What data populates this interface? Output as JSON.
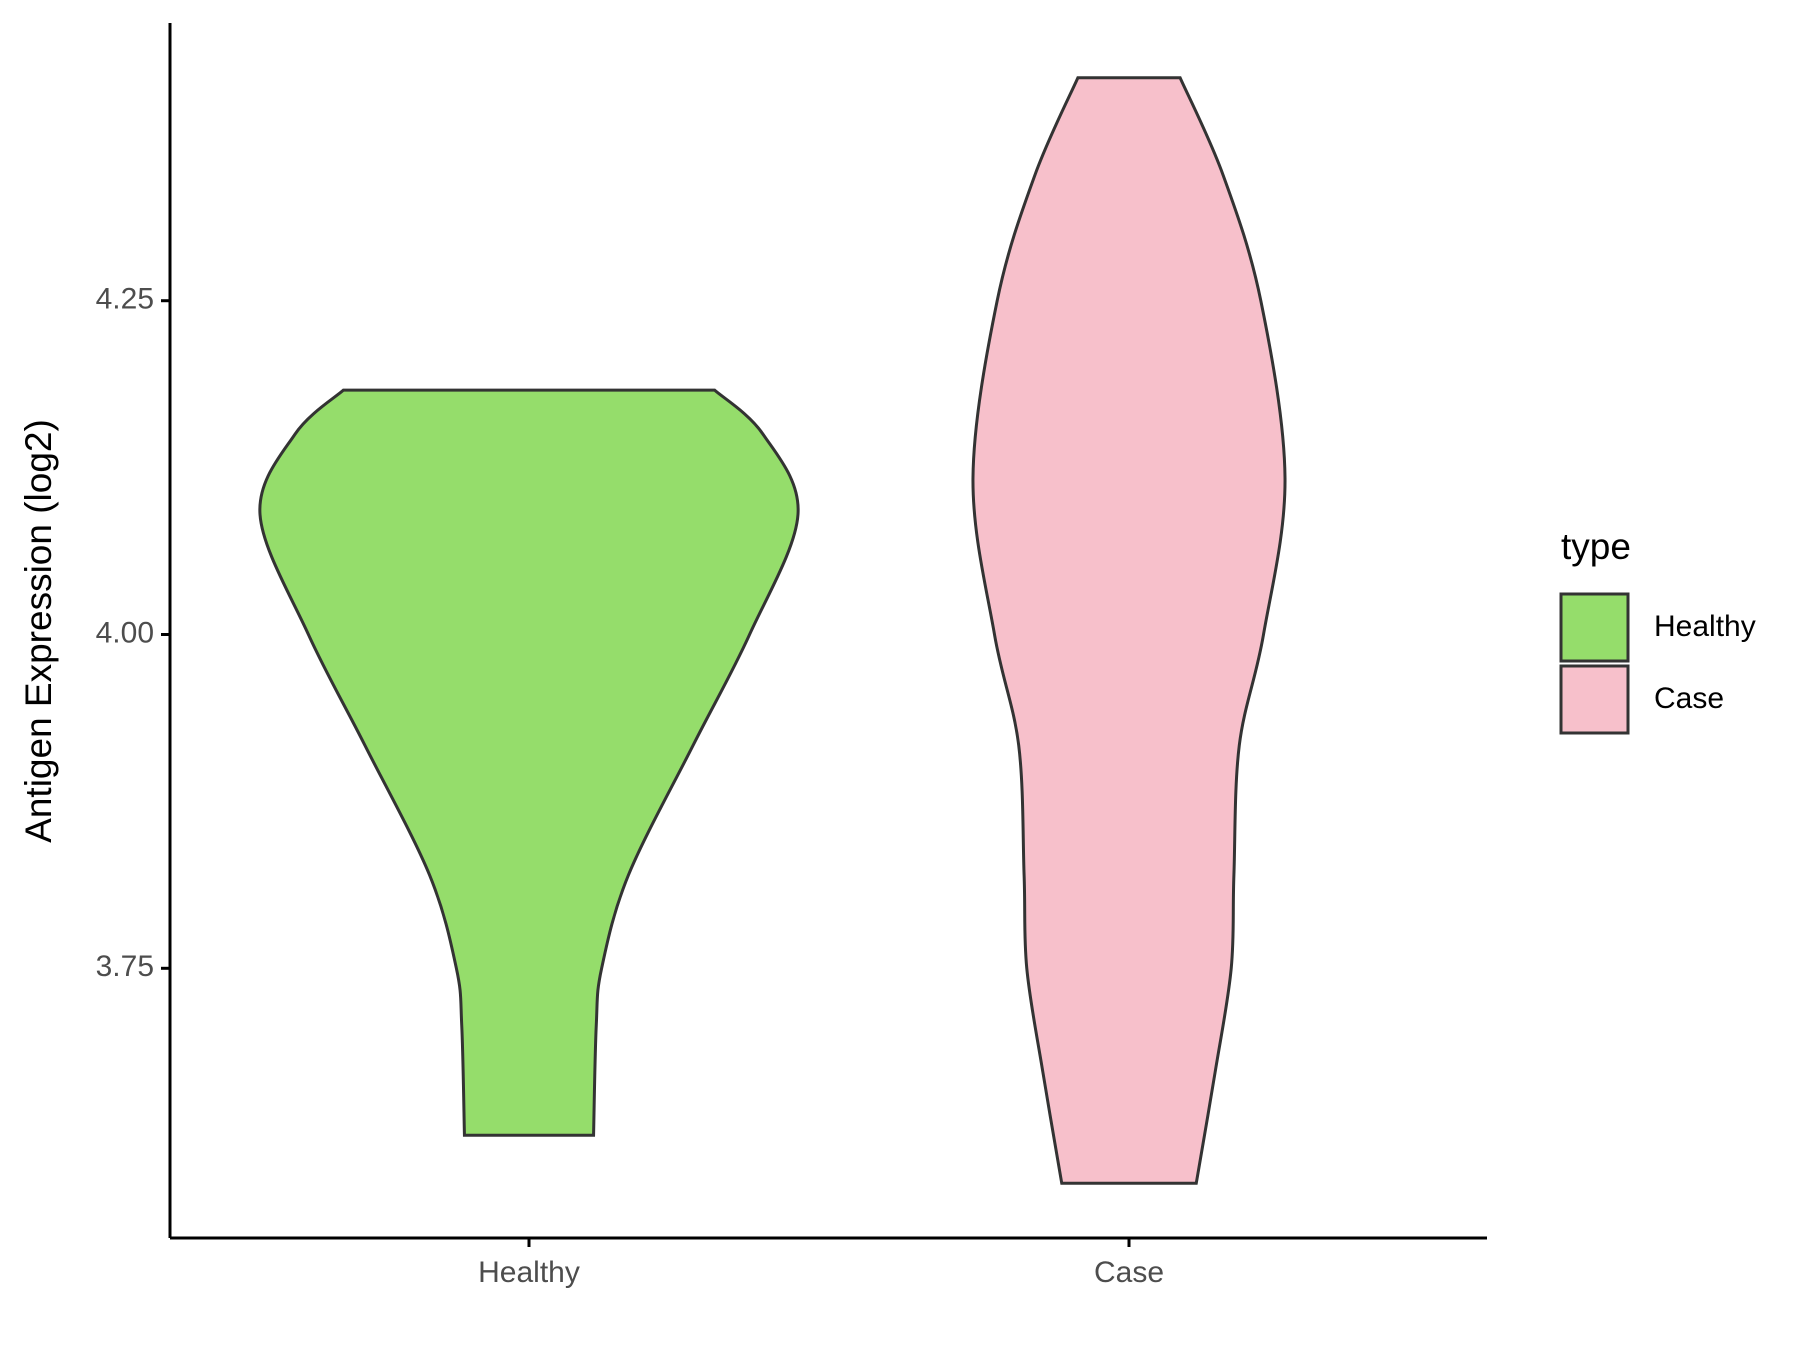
{
  "chart_data": {
    "type": "violin",
    "y_label": "Antigen Expression (log2)",
    "categories": [
      "Healthy",
      "Case"
    ],
    "legend_title": "type",
    "legend_position": "right",
    "ylim": [
      3.548,
      4.458
    ],
    "yticks": [
      {
        "value": 3.75,
        "label": "3.75"
      },
      {
        "value": 4.0,
        "label": "4.00"
      },
      {
        "value": 4.25,
        "label": "4.25"
      }
    ],
    "series": [
      {
        "name": "Healthy",
        "color": "#95dd6b",
        "y": [
          3.625,
          3.707,
          3.75,
          3.82,
          3.917,
          4.0,
          4.09,
          4.15,
          4.183
        ],
        "density": [
          0.24,
          0.25,
          0.27,
          0.37,
          0.61,
          0.82,
          1.0,
          0.87,
          0.69
        ]
      },
      {
        "name": "Case",
        "color": "#f7c0cb",
        "y": [
          3.589,
          3.672,
          3.75,
          3.82,
          3.917,
          4.0,
          4.117,
          4.25,
          4.344,
          4.417
        ],
        "density": [
          0.25,
          0.32,
          0.38,
          0.39,
          0.41,
          0.5,
          0.58,
          0.49,
          0.35,
          0.19
        ]
      }
    ]
  }
}
